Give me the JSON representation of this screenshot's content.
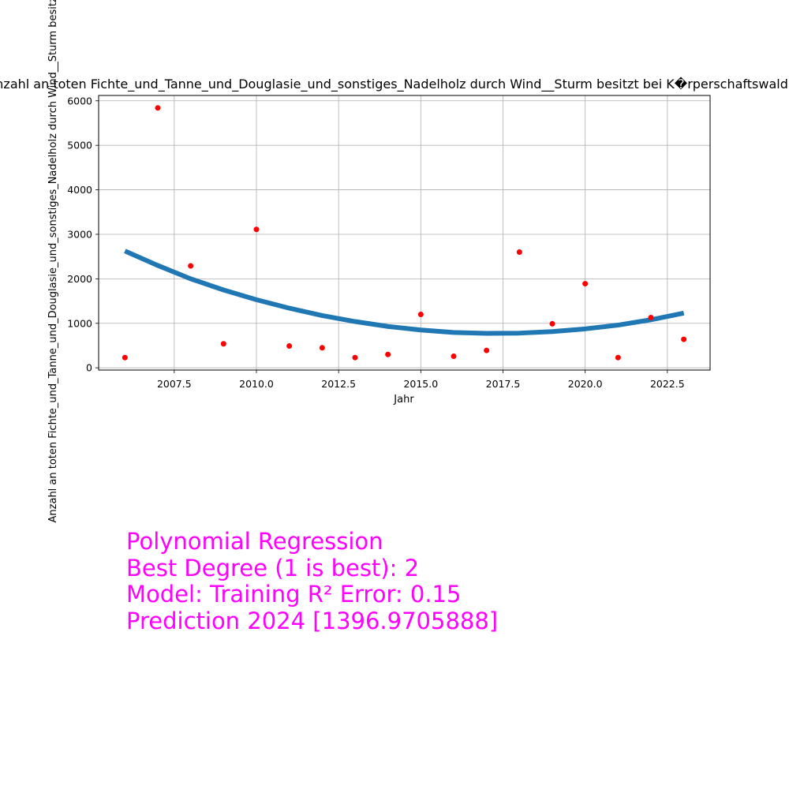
{
  "chart_data": {
    "type": "scatter",
    "title": "Anzahl an toten Fichte_und_Tanne_und_Douglasie_und_sonstiges_Nadelholz durch Wind__Sturm besitzt bei K�rperschaftswald über",
    "xlabel": "Jahr",
    "ylabel": "Anzahl an toten Fichte_und_Tanne_und_Douglasie_und_sonstiges_Nadelholz durch Wind__Sturm besitzt bei K�rp",
    "xlim": [
      2005.2,
      2023.8
    ],
    "ylim": [
      -50,
      6120
    ],
    "x_ticks": [
      2007.5,
      2010.0,
      2012.5,
      2015.0,
      2017.5,
      2020.0,
      2022.5
    ],
    "x_tick_labels": [
      "2007.5",
      "2010.0",
      "2012.5",
      "2015.0",
      "2017.5",
      "2020.0",
      "2022.5"
    ],
    "y_ticks": [
      0,
      1000,
      2000,
      3000,
      4000,
      5000,
      6000
    ],
    "y_tick_labels": [
      "0",
      "1000",
      "2000",
      "3000",
      "4000",
      "5000",
      "6000"
    ],
    "grid": true,
    "series": [
      {
        "kind": "points",
        "color": "#ff0000",
        "x": [
          2006,
          2007,
          2008,
          2009,
          2010,
          2011,
          2012,
          2013,
          2014,
          2015,
          2016,
          2017,
          2018,
          2019,
          2020,
          2021,
          2022,
          2023
        ],
        "y": [
          230,
          5840,
          2290,
          540,
          3110,
          490,
          450,
          230,
          300,
          1200,
          260,
          390,
          2600,
          990,
          1890,
          230,
          1130,
          640
        ]
      },
      {
        "kind": "fit",
        "color": "#1f77b4",
        "x": [
          2006,
          2007,
          2008,
          2009,
          2010,
          2011,
          2012,
          2013,
          2014,
          2015,
          2016,
          2017,
          2018,
          2019,
          2020,
          2021,
          2022,
          2023
        ],
        "y": [
          2625,
          2300,
          2000,
          1750,
          1530,
          1340,
          1175,
          1040,
          930,
          850,
          795,
          775,
          780,
          815,
          875,
          960,
          1080,
          1230
        ]
      }
    ]
  },
  "annotation": {
    "line1": "Polynomial Regression",
    "line2": "Best Degree (1 is best): 2",
    "line3": "Model: Training R² Error: 0.15",
    "line4": "Prediction 2024 [1396.9705888]",
    "color": "#ff00ff"
  }
}
